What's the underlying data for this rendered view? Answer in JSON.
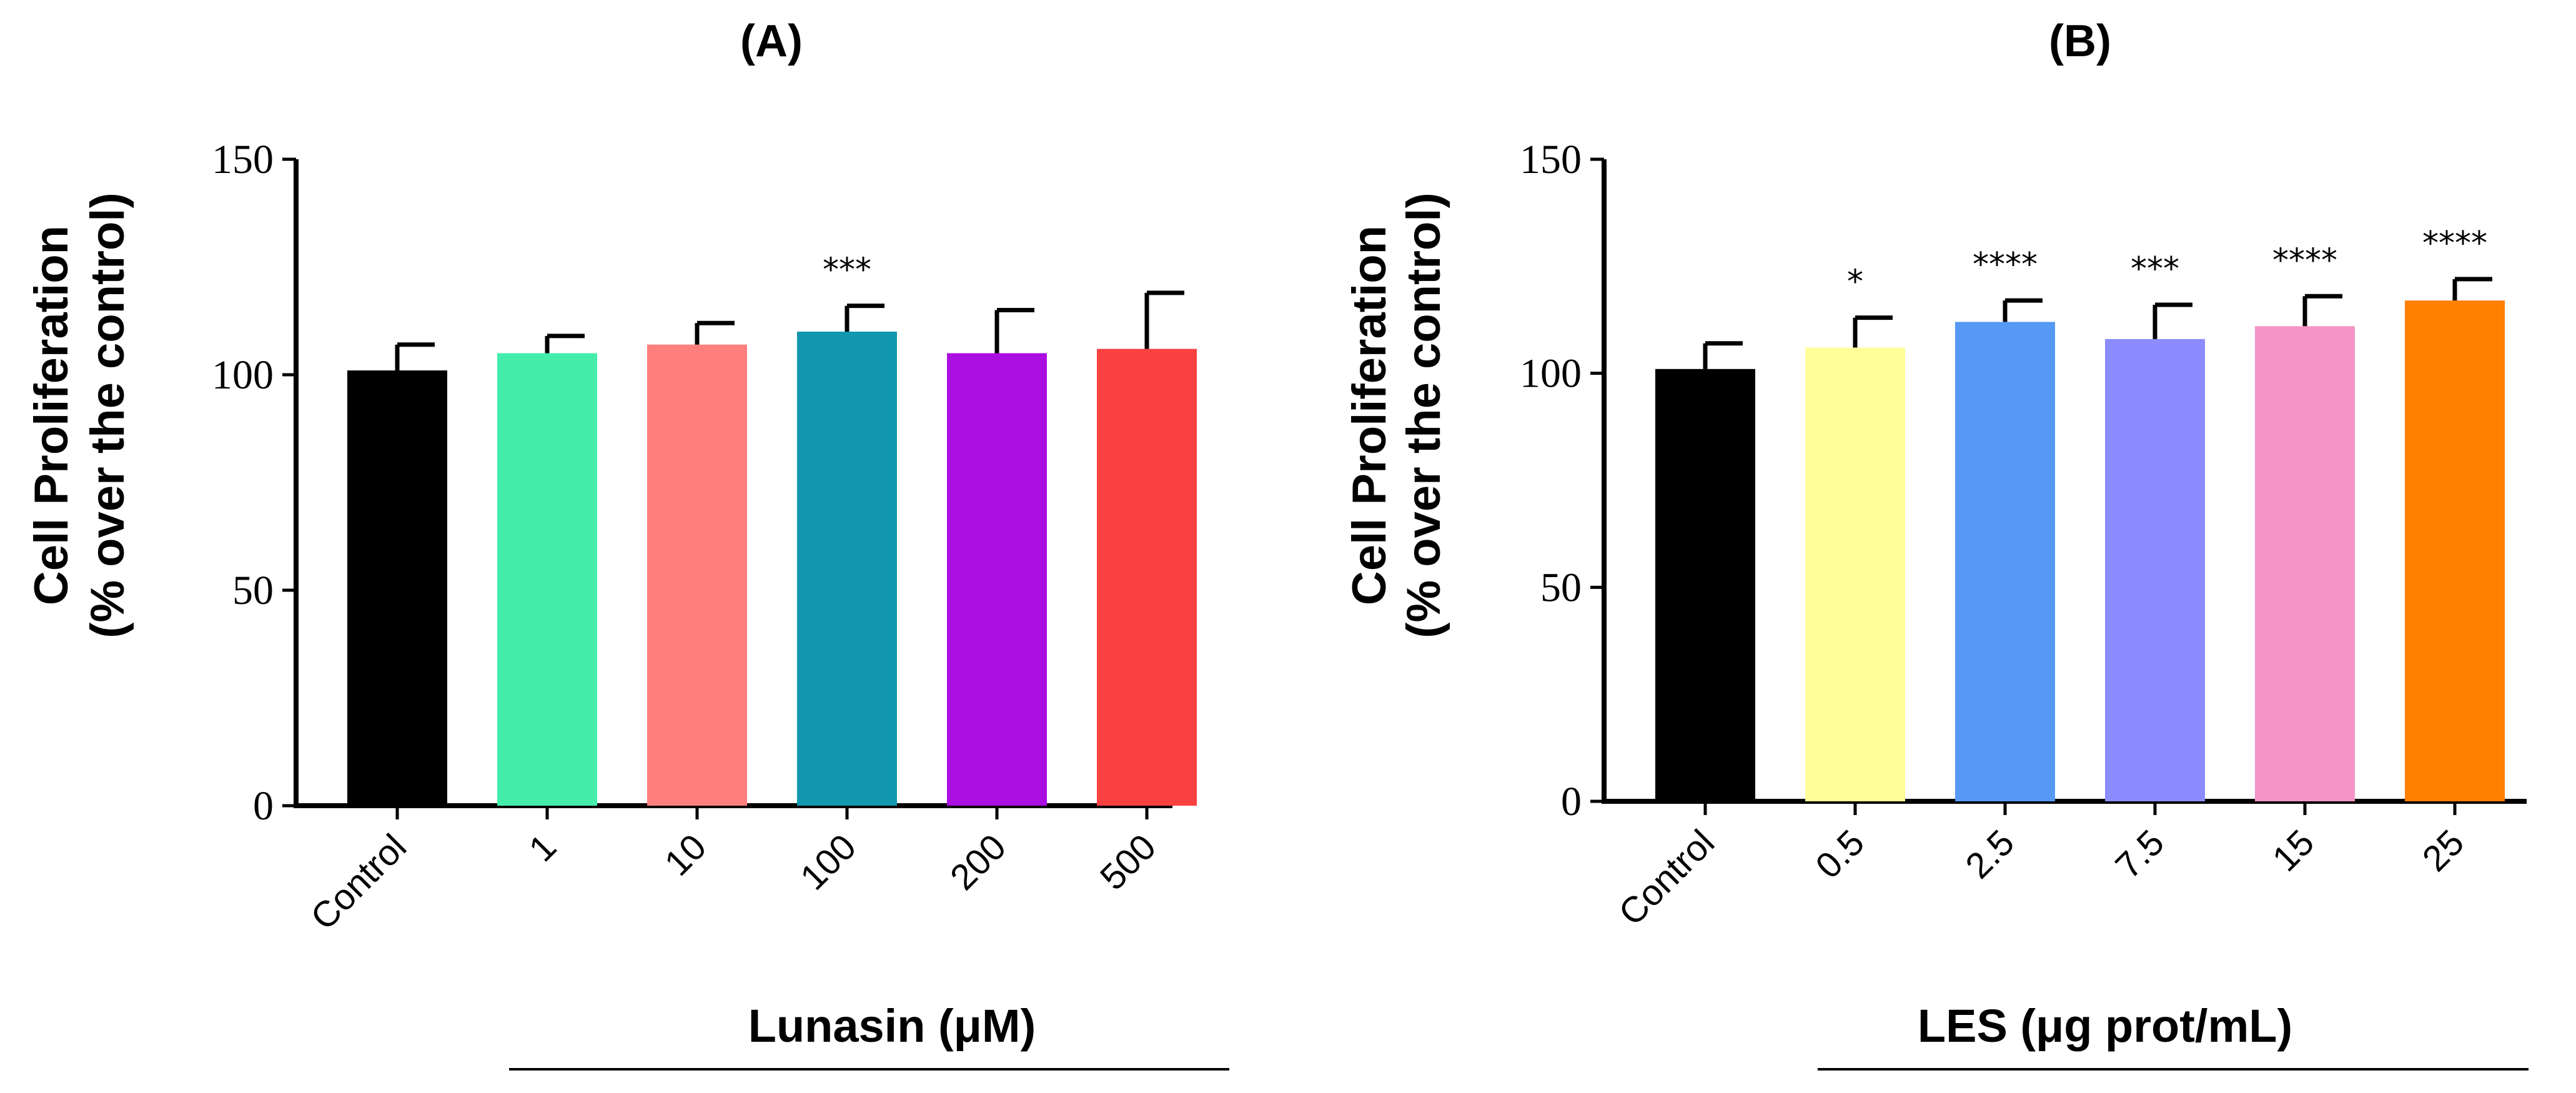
{
  "chart_data": [
    {
      "type": "bar",
      "panel": "(A)",
      "ylabel_line1": "Cell Proliferation",
      "ylabel_line2": "(% over the control)",
      "xlabel": "Lunasin (μM)",
      "ylim": [
        0,
        150
      ],
      "yticks": [
        "0",
        "50",
        "100",
        "150"
      ],
      "categories": [
        "Control",
        "1",
        "10",
        "100",
        "200",
        "500"
      ],
      "values": [
        101,
        105,
        107,
        110,
        105,
        106
      ],
      "errors": [
        6,
        4,
        5,
        6,
        10,
        13
      ],
      "significance": [
        "",
        "",
        "",
        "***",
        "",
        ""
      ],
      "colors": [
        "#000000",
        "#44EEAA",
        "#FF7F7F",
        "#1197B0",
        "#AA0EE0",
        "#F94141"
      ]
    },
    {
      "type": "bar",
      "panel": "(B)",
      "ylabel_line1": "Cell Proliferation",
      "ylabel_line2": "(% over the control)",
      "xlabel": "LES (μg prot/mL)",
      "ylim": [
        0,
        150
      ],
      "yticks": [
        "0",
        "50",
        "100",
        "150"
      ],
      "categories": [
        "Control",
        "0.5",
        "2.5",
        "7.5",
        "15",
        "25"
      ],
      "values": [
        101,
        106,
        112,
        108,
        111,
        117
      ],
      "errors": [
        6,
        7,
        5,
        8,
        7,
        5
      ],
      "significance": [
        "",
        "*",
        "****",
        "***",
        "****",
        "****"
      ],
      "colors": [
        "#000000",
        "#FFFF99",
        "#5599F5",
        "#8C8CFF",
        "#F595C5",
        "#FF7F00"
      ]
    }
  ]
}
